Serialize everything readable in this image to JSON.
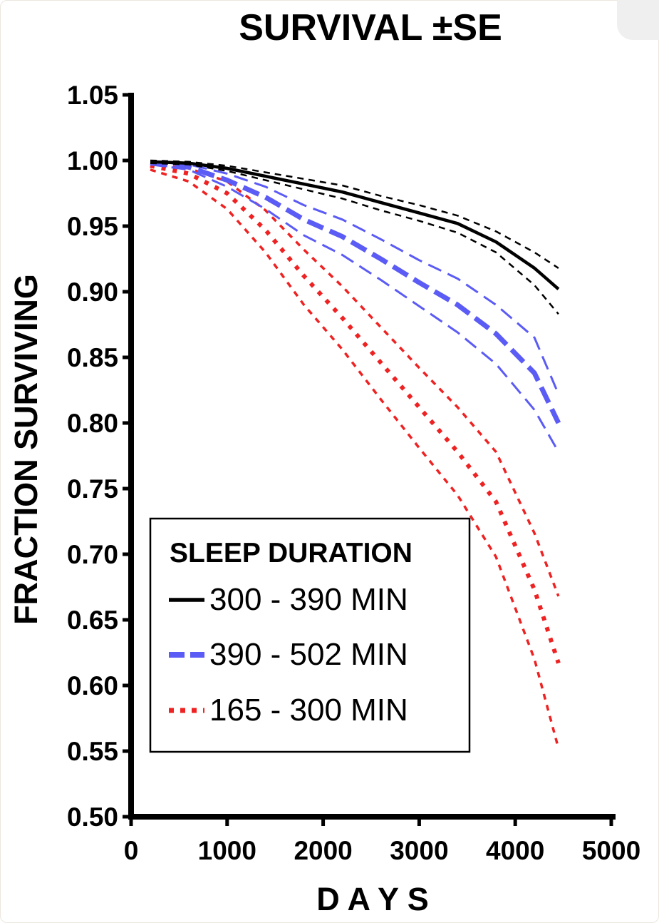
{
  "chart_data": {
    "type": "line",
    "title": "SURVIVAL ±SE",
    "xlabel": "D A Y S",
    "ylabel": "FRACTION  SURVIVING",
    "xlim": [
      0,
      5000
    ],
    "ylim": [
      0.5,
      1.05
    ],
    "x_ticks": [
      "0",
      "1000",
      "2000",
      "3000",
      "4000",
      "5000"
    ],
    "y_ticks": [
      "0.50",
      "0.55",
      "0.60",
      "0.65",
      "0.70",
      "0.75",
      "0.80",
      "0.85",
      "0.90",
      "0.95",
      "1.00",
      "1.05"
    ],
    "grid": false,
    "legend": {
      "title": "SLEEP DURATION",
      "position": "bottom-left"
    },
    "colors": {
      "black": "#000000",
      "blue": "#5b5bf5",
      "red": "#ee2222"
    },
    "x": [
      200,
      600,
      1000,
      1400,
      1800,
      2200,
      2600,
      3000,
      3400,
      3800,
      4200,
      4450
    ],
    "series": [
      {
        "name": "300 - 390 MIN",
        "color": "#000000",
        "style": "solid",
        "values": [
          0.999,
          0.998,
          0.994,
          0.988,
          0.982,
          0.976,
          0.968,
          0.96,
          0.952,
          0.938,
          0.918,
          0.902
        ],
        "se_upper": [
          1.0,
          0.999,
          0.996,
          0.991,
          0.986,
          0.981,
          0.973,
          0.966,
          0.958,
          0.946,
          0.93,
          0.918
        ],
        "se_lower": [
          0.998,
          0.997,
          0.992,
          0.985,
          0.978,
          0.971,
          0.962,
          0.954,
          0.945,
          0.93,
          0.905,
          0.883
        ]
      },
      {
        "name": "390 - 502 MIN",
        "color": "#5b5bf5",
        "style": "dashed",
        "values": [
          0.998,
          0.995,
          0.985,
          0.972,
          0.955,
          0.942,
          0.925,
          0.907,
          0.89,
          0.868,
          0.838,
          0.8
        ],
        "se_upper": [
          0.999,
          0.997,
          0.99,
          0.98,
          0.966,
          0.955,
          0.94,
          0.924,
          0.91,
          0.89,
          0.865,
          0.822
        ],
        "se_lower": [
          0.997,
          0.993,
          0.98,
          0.963,
          0.943,
          0.928,
          0.909,
          0.889,
          0.869,
          0.845,
          0.81,
          0.778
        ]
      },
      {
        "name": "165 - 300 MIN",
        "color": "#ee2222",
        "style": "dotted",
        "values": [
          0.996,
          0.99,
          0.975,
          0.947,
          0.912,
          0.88,
          0.846,
          0.812,
          0.778,
          0.74,
          0.673,
          0.617
        ],
        "se_upper": [
          0.998,
          0.994,
          0.984,
          0.962,
          0.932,
          0.904,
          0.873,
          0.842,
          0.812,
          0.778,
          0.716,
          0.668
        ],
        "se_lower": [
          0.993,
          0.984,
          0.963,
          0.93,
          0.89,
          0.856,
          0.818,
          0.781,
          0.745,
          0.698,
          0.62,
          0.552
        ]
      }
    ]
  }
}
